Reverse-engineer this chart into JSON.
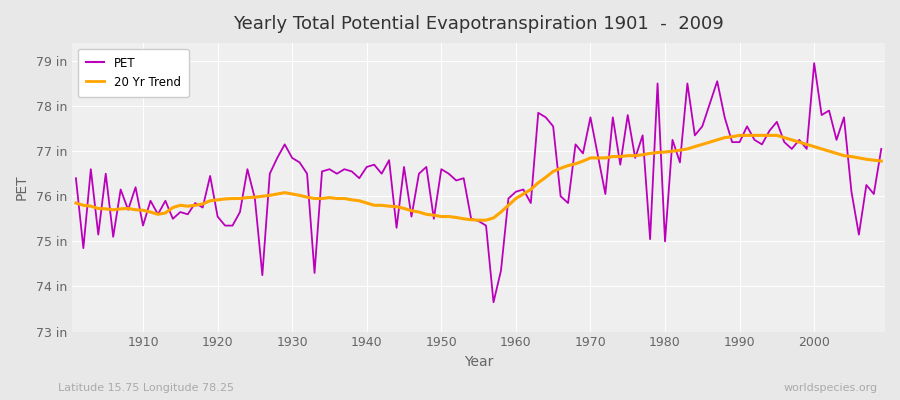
{
  "title": "Yearly Total Potential Evapotranspiration 1901  -  2009",
  "ylabel": "PET",
  "xlabel": "Year",
  "subtitle_left": "Latitude 15.75 Longitude 78.25",
  "subtitle_right": "worldspecies.org",
  "pet_color": "#BB00BB",
  "trend_color": "#FFA500",
  "bg_color": "#E8E8E8",
  "plot_bg_color": "#EFEFEF",
  "ylim": [
    73.0,
    79.4
  ],
  "yticks": [
    73,
    74,
    75,
    76,
    77,
    78,
    79
  ],
  "ytick_labels": [
    "73 in",
    "74 in",
    "75 in",
    "76 in",
    "77 in",
    "78 in",
    "79 in"
  ],
  "years": [
    1901,
    1902,
    1903,
    1904,
    1905,
    1906,
    1907,
    1908,
    1909,
    1910,
    1911,
    1912,
    1913,
    1914,
    1915,
    1916,
    1917,
    1918,
    1919,
    1920,
    1921,
    1922,
    1923,
    1924,
    1925,
    1926,
    1927,
    1928,
    1929,
    1930,
    1931,
    1932,
    1933,
    1934,
    1935,
    1936,
    1937,
    1938,
    1939,
    1940,
    1941,
    1942,
    1943,
    1944,
    1945,
    1946,
    1947,
    1948,
    1949,
    1950,
    1951,
    1952,
    1953,
    1954,
    1955,
    1956,
    1957,
    1958,
    1959,
    1960,
    1961,
    1962,
    1963,
    1964,
    1965,
    1966,
    1967,
    1968,
    1969,
    1970,
    1971,
    1972,
    1973,
    1974,
    1975,
    1976,
    1977,
    1978,
    1979,
    1980,
    1981,
    1982,
    1983,
    1984,
    1985,
    1986,
    1987,
    1988,
    1989,
    1990,
    1991,
    1992,
    1993,
    1994,
    1995,
    1996,
    1997,
    1998,
    1999,
    2000,
    2001,
    2002,
    2003,
    2004,
    2005,
    2006,
    2007,
    2008,
    2009
  ],
  "pet_values": [
    76.4,
    74.85,
    76.6,
    75.15,
    76.5,
    75.1,
    76.15,
    75.7,
    76.2,
    75.35,
    75.9,
    75.6,
    75.9,
    75.5,
    75.65,
    75.6,
    75.85,
    75.75,
    76.45,
    75.55,
    75.35,
    75.35,
    75.65,
    76.6,
    75.95,
    74.25,
    76.5,
    76.85,
    77.15,
    76.85,
    76.75,
    76.5,
    74.3,
    76.55,
    76.6,
    76.5,
    76.6,
    76.55,
    76.4,
    76.65,
    76.7,
    76.5,
    76.8,
    75.3,
    76.65,
    75.55,
    76.5,
    76.65,
    75.5,
    76.6,
    76.5,
    76.35,
    76.4,
    75.5,
    75.45,
    75.35,
    73.65,
    74.35,
    75.95,
    76.1,
    76.15,
    75.85,
    77.85,
    77.75,
    77.55,
    76.0,
    75.85,
    77.15,
    76.95,
    77.75,
    76.9,
    76.05,
    77.75,
    76.7,
    77.8,
    76.85,
    77.35,
    75.05,
    78.5,
    75.0,
    77.25,
    76.75,
    78.5,
    77.35,
    77.55,
    78.05,
    78.55,
    77.75,
    77.2,
    77.2,
    77.55,
    77.25,
    77.15,
    77.45,
    77.65,
    77.2,
    77.05,
    77.25,
    77.05,
    78.95,
    77.8,
    77.9,
    77.25,
    77.75,
    76.1,
    75.15,
    76.25,
    76.05,
    77.05
  ],
  "trend_values": [
    75.85,
    75.8,
    75.78,
    75.73,
    75.72,
    75.7,
    75.72,
    75.73,
    75.7,
    75.69,
    75.65,
    75.6,
    75.63,
    75.75,
    75.8,
    75.78,
    75.8,
    75.83,
    75.9,
    75.92,
    75.94,
    75.95,
    75.95,
    75.97,
    75.98,
    76.0,
    76.02,
    76.05,
    76.08,
    76.05,
    76.02,
    75.98,
    75.95,
    75.95,
    75.97,
    75.95,
    75.95,
    75.92,
    75.9,
    75.85,
    75.8,
    75.8,
    75.78,
    75.77,
    75.73,
    75.68,
    75.65,
    75.6,
    75.58,
    75.55,
    75.55,
    75.53,
    75.5,
    75.48,
    75.47,
    75.47,
    75.52,
    75.65,
    75.8,
    75.95,
    76.05,
    76.15,
    76.3,
    76.42,
    76.55,
    76.62,
    76.68,
    76.72,
    76.78,
    76.85,
    76.85,
    76.85,
    76.88,
    76.88,
    76.9,
    76.9,
    76.92,
    76.95,
    76.97,
    76.98,
    77.0,
    77.02,
    77.05,
    77.1,
    77.15,
    77.2,
    77.25,
    77.3,
    77.32,
    77.35,
    77.35,
    77.35,
    77.35,
    77.35,
    77.35,
    77.3,
    77.25,
    77.2,
    77.15,
    77.1,
    77.05,
    77.0,
    76.95,
    76.9,
    76.88,
    76.85,
    76.82,
    76.8,
    76.78
  ]
}
